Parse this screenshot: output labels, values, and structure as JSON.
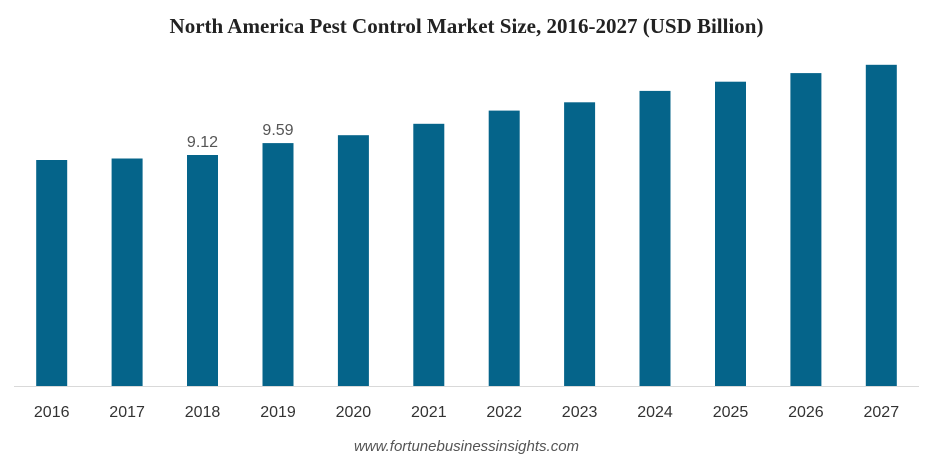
{
  "chart_data": {
    "type": "bar",
    "title": "North America Pest Control Market Size, 2016-2027 (USD Billion)",
    "categories": [
      "2016",
      "2017",
      "2018",
      "2019",
      "2020",
      "2021",
      "2022",
      "2023",
      "2024",
      "2025",
      "2026",
      "2027"
    ],
    "values": [
      8.92,
      8.98,
      9.12,
      9.59,
      9.9,
      10.35,
      10.87,
      11.2,
      11.65,
      12.01,
      12.35,
      12.68
    ],
    "data_labels": [
      "",
      "",
      "9.12",
      "9.59",
      "",
      "",
      "",
      "",
      "",
      "",
      "",
      ""
    ],
    "xlabel": "",
    "ylabel": "",
    "ylim": [
      0,
      13.5
    ],
    "grid": false,
    "legend": "none",
    "bar_color": "#05648a",
    "axis_color": "#d9d9d9"
  },
  "source": "www.fortunebusinessinsights.com"
}
